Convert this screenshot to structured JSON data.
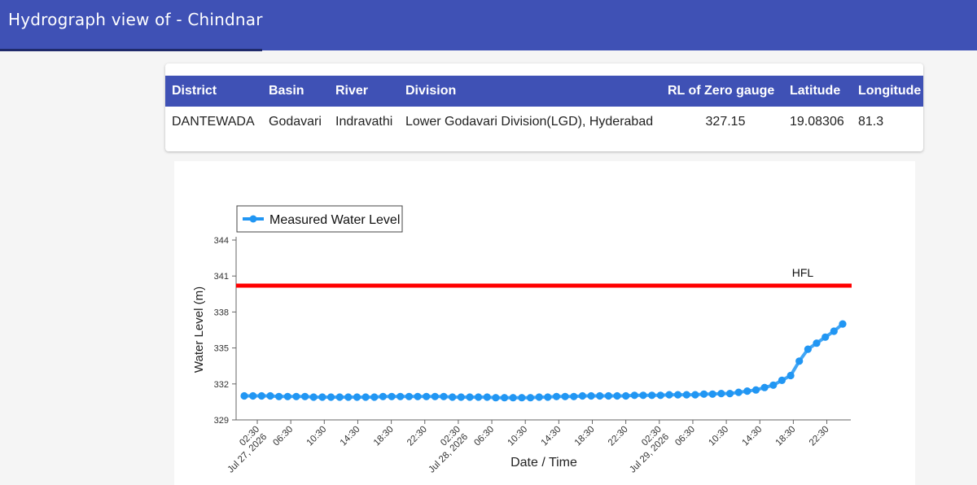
{
  "header": {
    "title": "Hydrograph view of - Chindnar"
  },
  "station_table": {
    "columns": [
      "District",
      "Basin",
      "River",
      "Division",
      "RL of Zero gauge",
      "Latitude",
      "Longitude"
    ],
    "row": [
      "DANTEWADA",
      "Godavari",
      "Indravathi",
      "Lower Godavari Division(LGD), Hyderabad",
      "327.15",
      "19.08306",
      "81.3"
    ]
  },
  "colors": {
    "header_bg": "#3f51b5",
    "series": "#2196f3",
    "hfl": "#ff0000"
  },
  "chart_data": {
    "type": "line",
    "title": "",
    "xlabel": "Date / Time",
    "ylabel": "Water Level (m)",
    "ylim": [
      329,
      344
    ],
    "yticks": [
      329,
      332,
      335,
      338,
      341,
      344
    ],
    "xticks": [
      {
        "t": 1,
        "label": "02:30",
        "date": "Jul 27, 2026"
      },
      {
        "t": 2,
        "label": "06:30"
      },
      {
        "t": 3,
        "label": "10:30"
      },
      {
        "t": 4,
        "label": "14:30"
      },
      {
        "t": 5,
        "label": "18:30"
      },
      {
        "t": 6,
        "label": "22:30"
      },
      {
        "t": 7,
        "label": "02:30",
        "date": "Jul 28, 2026"
      },
      {
        "t": 8,
        "label": "06:30"
      },
      {
        "t": 9,
        "label": "10:30"
      },
      {
        "t": 10,
        "label": "14:30"
      },
      {
        "t": 11,
        "label": "18:30"
      },
      {
        "t": 12,
        "label": "22:30"
      },
      {
        "t": 13,
        "label": "02:30",
        "date": "Jul 29, 2026"
      },
      {
        "t": 14,
        "label": "06:30"
      },
      {
        "t": 15,
        "label": "10:30"
      },
      {
        "t": 16,
        "label": "14:30"
      },
      {
        "t": 17,
        "label": "18:30"
      },
      {
        "t": 18,
        "label": "22:30"
      }
    ],
    "legend": "top-left",
    "grid": false,
    "hfl": {
      "label": "HFL",
      "value": 340.2
    },
    "series": [
      {
        "name": "Measured Water Level",
        "values": [
          331.0,
          331.0,
          331.0,
          331.0,
          330.95,
          330.95,
          330.95,
          330.95,
          330.9,
          330.9,
          330.9,
          330.9,
          330.9,
          330.9,
          330.9,
          330.9,
          330.95,
          330.95,
          330.95,
          330.95,
          330.95,
          330.95,
          330.95,
          330.95,
          330.9,
          330.9,
          330.9,
          330.9,
          330.9,
          330.85,
          330.85,
          330.85,
          330.85,
          330.85,
          330.9,
          330.9,
          330.95,
          330.95,
          330.95,
          331.0,
          331.0,
          331.0,
          331.0,
          331.0,
          331.0,
          331.05,
          331.05,
          331.05,
          331.05,
          331.1,
          331.1,
          331.1,
          331.1,
          331.15,
          331.15,
          331.2,
          331.2,
          331.3,
          331.4,
          331.5,
          331.7,
          331.9,
          332.3,
          332.7,
          333.9,
          334.9,
          335.4,
          335.9,
          336.4,
          337.0
        ]
      }
    ]
  }
}
